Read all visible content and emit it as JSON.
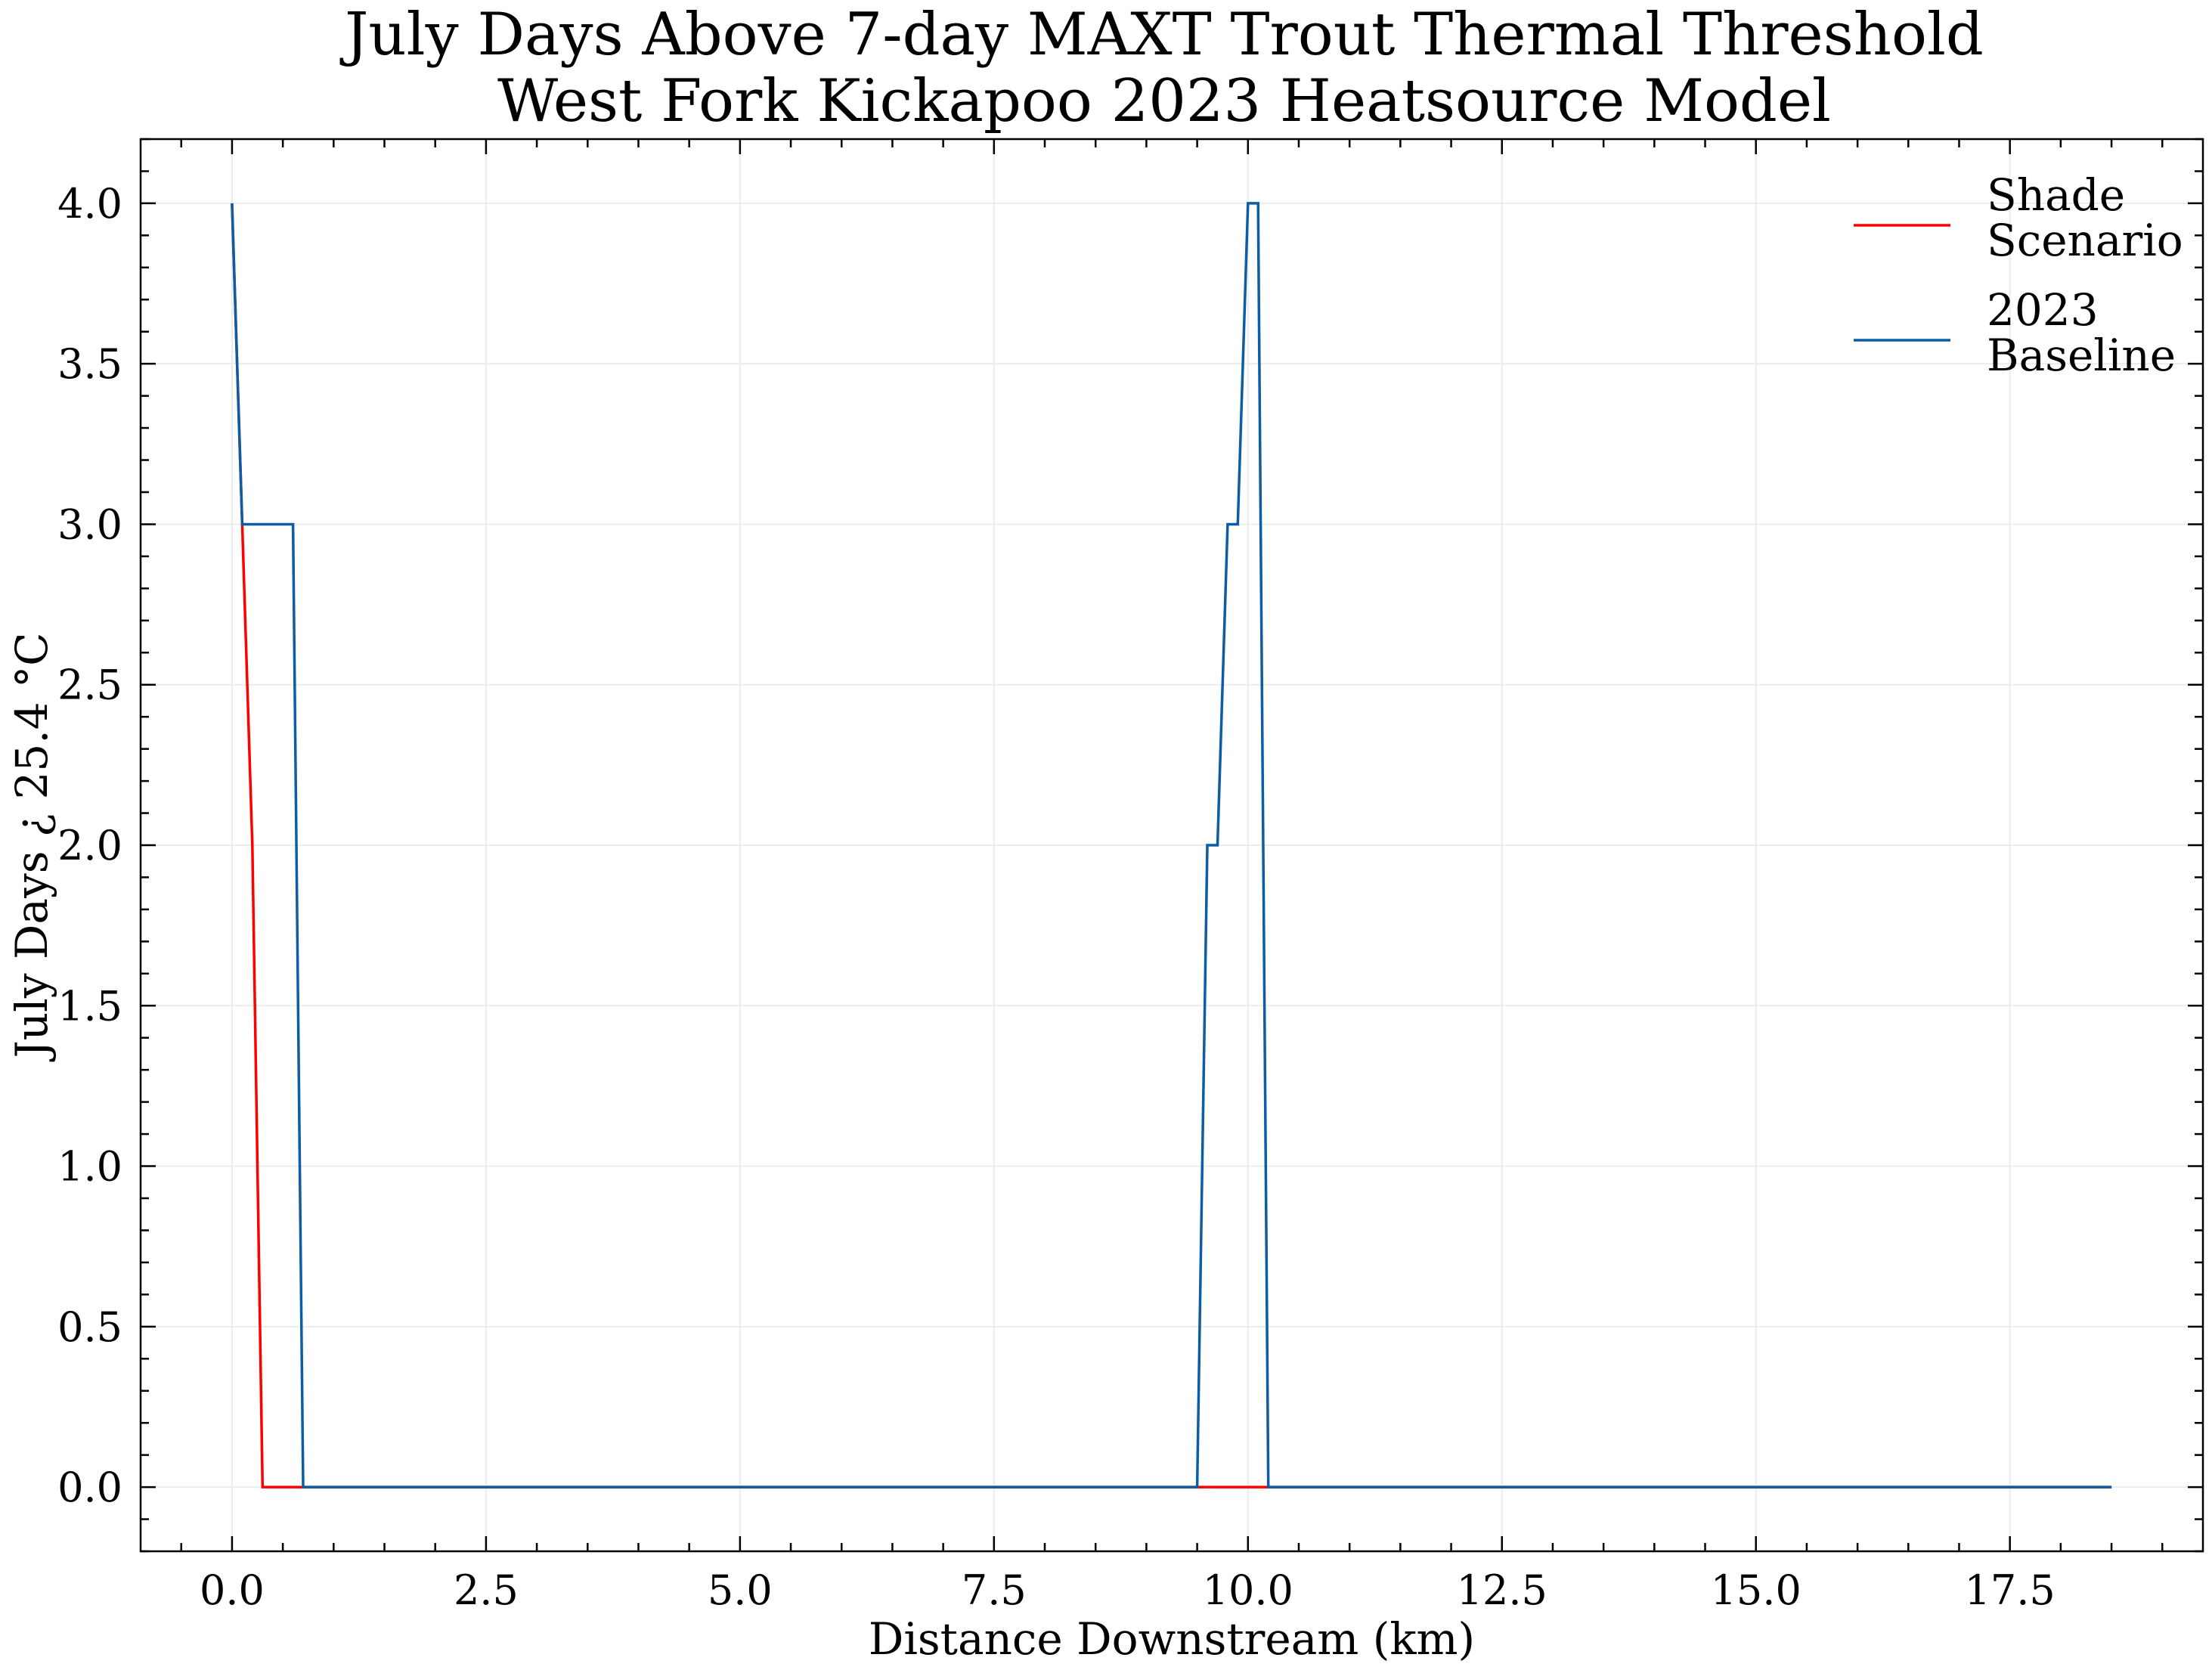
{
  "chart_data": {
    "type": "line",
    "title": [
      "July Days Above 7-day MAXT Trout Thermal Threshold",
      "West Fork Kickapoo 2023 Heatsource Model"
    ],
    "xlabel": "Distance Downstream (km)",
    "ylabel": "July Days ¿ 25.4$^\\circ$C",
    "ylabel_display": "July Days ¿ 25.4 °C",
    "xlim": [
      -0.9,
      19.4
    ],
    "ylim": [
      -0.2,
      4.2
    ],
    "xticks": [
      0.0,
      2.5,
      5.0,
      7.5,
      10.0,
      12.5,
      15.0,
      17.5
    ],
    "xtick_labels": [
      "0.0",
      "2.5",
      "5.0",
      "7.5",
      "10.0",
      "12.5",
      "15.0",
      "17.5"
    ],
    "yticks": [
      0.0,
      0.5,
      1.0,
      1.5,
      2.0,
      2.5,
      3.0,
      3.5,
      4.0
    ],
    "ytick_labels": [
      "0.0",
      "0.5",
      "1.0",
      "1.5",
      "2.0",
      "2.5",
      "3.0",
      "3.5",
      "4.0"
    ],
    "grid": true,
    "legend_position": "top-right",
    "series": [
      {
        "name": "Shade Scenario",
        "legend_lines": [
          "Shade",
          "Scenario"
        ],
        "color": "#ff0000",
        "x": [
          0.0,
          0.1,
          0.2,
          0.3,
          0.6,
          0.7,
          9.5,
          9.6,
          9.7,
          9.8,
          9.9,
          10.0,
          10.1,
          10.2,
          18.5
        ],
        "y": [
          4,
          3,
          2,
          0,
          0,
          0,
          0,
          0,
          0,
          0,
          0,
          0,
          0,
          0,
          0
        ]
      },
      {
        "name": "2023 Baseline",
        "legend_lines": [
          "2023",
          "Baseline"
        ],
        "color": "#0c5da5",
        "x": [
          0.0,
          0.1,
          0.2,
          0.3,
          0.6,
          0.7,
          9.5,
          9.6,
          9.7,
          9.8,
          9.9,
          10.0,
          10.1,
          10.2,
          18.5
        ],
        "y": [
          4,
          3,
          3,
          3,
          3,
          0,
          0,
          2,
          2,
          3,
          3,
          4,
          4,
          0,
          0
        ]
      }
    ]
  }
}
